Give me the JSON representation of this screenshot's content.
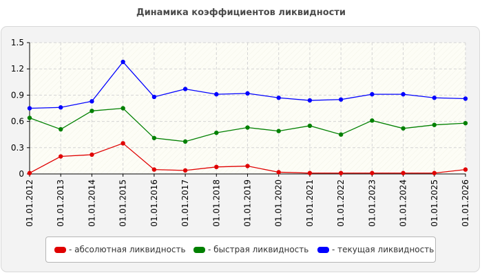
{
  "chart_data": {
    "type": "line",
    "title": "Динамика коэффициентов ликвидности",
    "categories": [
      "01.01.2012",
      "01.01.2013",
      "01.01.2014",
      "01.01.2015",
      "01.01.2016",
      "01.01.2017",
      "01.01.2018",
      "01.01.2019",
      "01.01.2020",
      "01.01.2021",
      "01.01.2022",
      "01.01.2023",
      "01.01.2024",
      "01.01.2025",
      "01.01.2026"
    ],
    "y_ticks": [
      "0",
      "0.3",
      "0.6",
      "0.9",
      "1.2",
      "1.5"
    ],
    "ylim": [
      0,
      1.5
    ],
    "grid": true,
    "legend_position": "bottom",
    "series": [
      {
        "name": "- абсолютная ликвидность",
        "color": "#e00000",
        "values": [
          0.01,
          0.2,
          0.22,
          0.35,
          0.05,
          0.04,
          0.08,
          0.09,
          0.02,
          0.01,
          0.01,
          0.01,
          0.01,
          0.01,
          0.05
        ]
      },
      {
        "name": "- быстрая ликвидность",
        "color": "#008000",
        "values": [
          0.64,
          0.51,
          0.72,
          0.75,
          0.41,
          0.37,
          0.47,
          0.53,
          0.49,
          0.55,
          0.45,
          0.61,
          0.52,
          0.56,
          0.58
        ]
      },
      {
        "name": "- текущая ликвидность",
        "color": "#0000ff",
        "values": [
          0.75,
          0.76,
          0.83,
          1.28,
          0.88,
          0.97,
          0.91,
          0.92,
          0.87,
          0.84,
          0.85,
          0.91,
          0.91,
          0.87,
          0.86
        ]
      }
    ]
  }
}
